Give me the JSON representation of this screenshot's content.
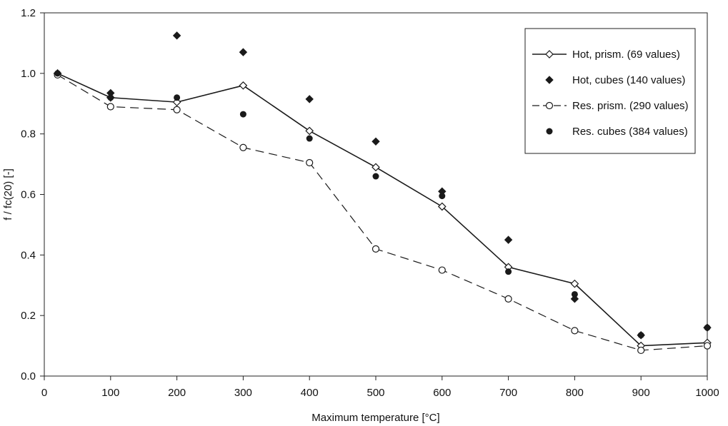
{
  "chart_data": {
    "type": "line",
    "title": "",
    "xlabel": "Maximum temperature [°C]",
    "ylabel": "f / fc(20) [-]",
    "xlim": [
      0,
      1000
    ],
    "ylim": [
      0,
      1.2
    ],
    "x_ticks": [
      0,
      100,
      200,
      300,
      400,
      500,
      600,
      700,
      800,
      900,
      1000
    ],
    "x_tick_labels": [
      "0",
      "100",
      "200",
      "300",
      "400",
      "500",
      "600",
      "700",
      "800",
      "900",
      "1000"
    ],
    "y_ticks": [
      0,
      0.2,
      0.4,
      0.6,
      0.8,
      1.0,
      1.2
    ],
    "y_tick_labels": [
      "0.0",
      "0.2",
      "0.4",
      "0.6",
      "0.8",
      "1.0",
      "1.2"
    ],
    "grid": false,
    "legend_position": "top-right",
    "series": [
      {
        "name": "Hot, prism. (69 values)",
        "style": "solid-line-open-diamond",
        "color": "#1a1a1a",
        "x": [
          20,
          100,
          200,
          300,
          400,
          500,
          600,
          700,
          800,
          900,
          1000
        ],
        "y": [
          1.0,
          0.92,
          0.905,
          0.96,
          0.81,
          0.69,
          0.56,
          0.36,
          0.305,
          0.1,
          0.11
        ]
      },
      {
        "name": "Hot, cubes (140 values)",
        "style": "filled-diamond-markers",
        "color": "#1a1a1a",
        "x": [
          20,
          100,
          200,
          300,
          400,
          500,
          600,
          700,
          800,
          900,
          1000
        ],
        "y": [
          1.0,
          0.935,
          1.125,
          1.07,
          0.915,
          0.775,
          0.61,
          0.45,
          0.255,
          0.135,
          0.16
        ]
      },
      {
        "name": "Res. prism. (290 values)",
        "style": "dashed-line-open-circle",
        "color": "#1a1a1a",
        "x": [
          20,
          100,
          200,
          300,
          400,
          500,
          600,
          700,
          800,
          900,
          1000
        ],
        "y": [
          0.995,
          0.89,
          0.88,
          0.755,
          0.705,
          0.42,
          0.35,
          0.255,
          0.15,
          0.085,
          0.1
        ]
      },
      {
        "name": "Res. cubes (384 values)",
        "style": "filled-circle-markers",
        "color": "#1a1a1a",
        "x": [
          20,
          100,
          200,
          300,
          400,
          500,
          600,
          700,
          800,
          900,
          1000
        ],
        "y": [
          1.0,
          0.92,
          0.92,
          0.865,
          0.785,
          0.66,
          0.595,
          0.345,
          0.27,
          0.135,
          0.16
        ]
      }
    ]
  }
}
